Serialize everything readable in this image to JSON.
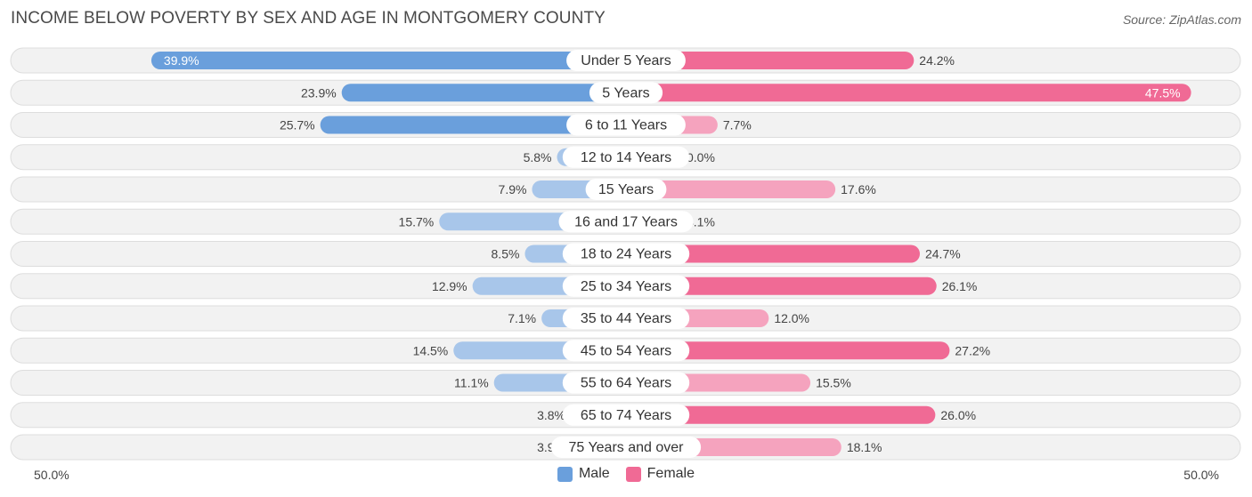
{
  "title": "INCOME BELOW POVERTY BY SEX AND AGE IN MONTGOMERY COUNTY",
  "source": "Source: ZipAtlas.com",
  "axis": {
    "left_label": "50.0%",
    "right_label": "50.0%"
  },
  "legend": {
    "male": "Male",
    "female": "Female"
  },
  "colors": {
    "male_strong": "#6a9fdc",
    "male_light": "#a8c6ea",
    "female_strong": "#f06a95",
    "female_light": "#f5a3be",
    "row_bg": "#f2f2f2",
    "row_border": "#dddddd"
  },
  "chart_data": {
    "type": "bar",
    "orientation": "horizontal-diverging",
    "max": 50.0,
    "categories": [
      "Under 5 Years",
      "5 Years",
      "6 to 11 Years",
      "12 to 14 Years",
      "15 Years",
      "16 and 17 Years",
      "18 to 24 Years",
      "25 to 34 Years",
      "35 to 44 Years",
      "45 to 54 Years",
      "55 to 64 Years",
      "65 to 74 Years",
      "75 Years and over"
    ],
    "series": [
      {
        "name": "Male",
        "values": [
          39.9,
          23.9,
          25.7,
          5.8,
          7.9,
          15.7,
          8.5,
          12.9,
          7.1,
          14.5,
          11.1,
          3.8,
          3.9
        ],
        "labels": [
          "39.9%",
          "23.9%",
          "25.7%",
          "5.8%",
          "7.9%",
          "15.7%",
          "8.5%",
          "12.9%",
          "7.1%",
          "14.5%",
          "11.1%",
          "3.8%",
          "3.9%"
        ]
      },
      {
        "name": "Female",
        "values": [
          24.2,
          47.5,
          7.7,
          0.0,
          17.6,
          4.1,
          24.7,
          26.1,
          12.0,
          27.2,
          15.5,
          26.0,
          18.1
        ],
        "labels": [
          "24.2%",
          "47.5%",
          "7.7%",
          "0.0%",
          "17.6%",
          "4.1%",
          "24.7%",
          "26.1%",
          "12.0%",
          "27.2%",
          "15.5%",
          "26.0%",
          "18.1%"
        ]
      }
    ]
  }
}
